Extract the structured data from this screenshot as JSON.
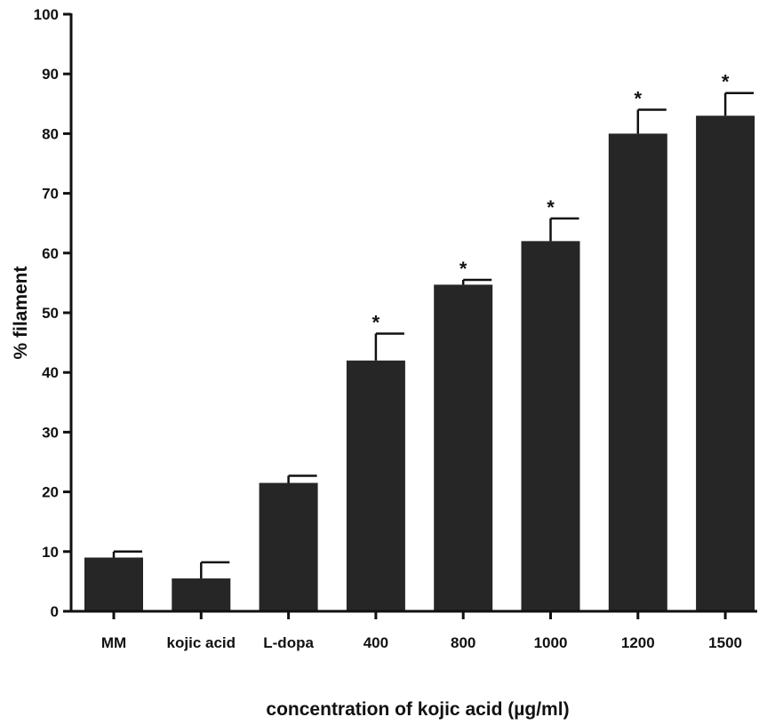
{
  "chart_data": {
    "type": "bar",
    "title": "",
    "xlabel": "concentration of kojic acid (µg/ml)",
    "ylabel": "% filament",
    "ylim": [
      0,
      100
    ],
    "yticks": [
      0,
      10,
      20,
      30,
      40,
      50,
      60,
      70,
      80,
      90,
      100
    ],
    "categories": [
      "MM",
      "kojic acid",
      "L-dopa",
      "400",
      "800",
      "1000",
      "1200",
      "1500"
    ],
    "values": [
      9,
      5.5,
      21.5,
      42,
      54.7,
      62,
      80,
      83
    ],
    "errors": [
      1,
      2.7,
      1.2,
      4.5,
      0.8,
      3.8,
      4,
      3.8
    ],
    "significance": [
      "",
      "",
      "",
      "*",
      "*",
      "*",
      "*",
      "*"
    ],
    "grid": false,
    "legend": "none",
    "bar_color": "#262626",
    "axis_color": "#111111"
  }
}
